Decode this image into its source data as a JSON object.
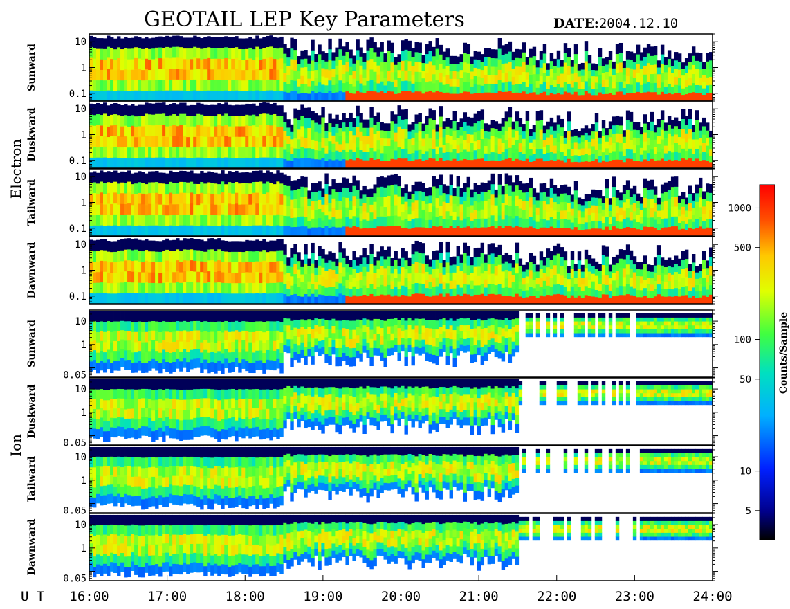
{
  "chart_data": {
    "type": "heatmap",
    "title": "GEOTAIL LEP Key Parameters",
    "date_label": "DATE:",
    "date_value": "2004.12.10",
    "x_axis_label": "U T",
    "x_ticks": [
      "16:00",
      "17:00",
      "18:00",
      "19:00",
      "20:00",
      "21:00",
      "22:00",
      "23:00",
      "24:00"
    ],
    "x_range_hours": [
      16,
      24
    ],
    "colorbar": {
      "label": "Counts/Sample",
      "scale": "log",
      "range": [
        3,
        1500
      ],
      "ticks": [
        {
          "value": 1000,
          "label": "1000"
        },
        {
          "value": 500,
          "label": "500"
        },
        {
          "value": 100,
          "label": "100"
        },
        {
          "value": 50,
          "label": "50"
        },
        {
          "value": 10,
          "label": "10"
        },
        {
          "value": 5,
          "label": "5"
        }
      ]
    },
    "groups": [
      {
        "name": "Electron",
        "y_scale": "log",
        "y_range": [
          0.05,
          20
        ],
        "y_ticks": [
          {
            "value": 10,
            "label": "10"
          },
          {
            "value": 1,
            "label": "1"
          },
          {
            "value": 0.1,
            "label": "0.1"
          }
        ],
        "panels": [
          {
            "name": "Sunward"
          },
          {
            "name": "Duskward"
          },
          {
            "name": "Tailward"
          },
          {
            "name": "Dawnward"
          }
        ]
      },
      {
        "name": "Ion",
        "y_scale": "log",
        "y_range": [
          0.04,
          30
        ],
        "y_ticks": [
          {
            "value": 10,
            "label": "10"
          },
          {
            "value": 1,
            "label": "1"
          },
          {
            "value": 0.05,
            "label": "0.05"
          }
        ],
        "panels": [
          {
            "name": "Sunward"
          },
          {
            "name": "Duskward"
          },
          {
            "name": "Tailward"
          },
          {
            "name": "Dawnward"
          }
        ]
      }
    ]
  }
}
